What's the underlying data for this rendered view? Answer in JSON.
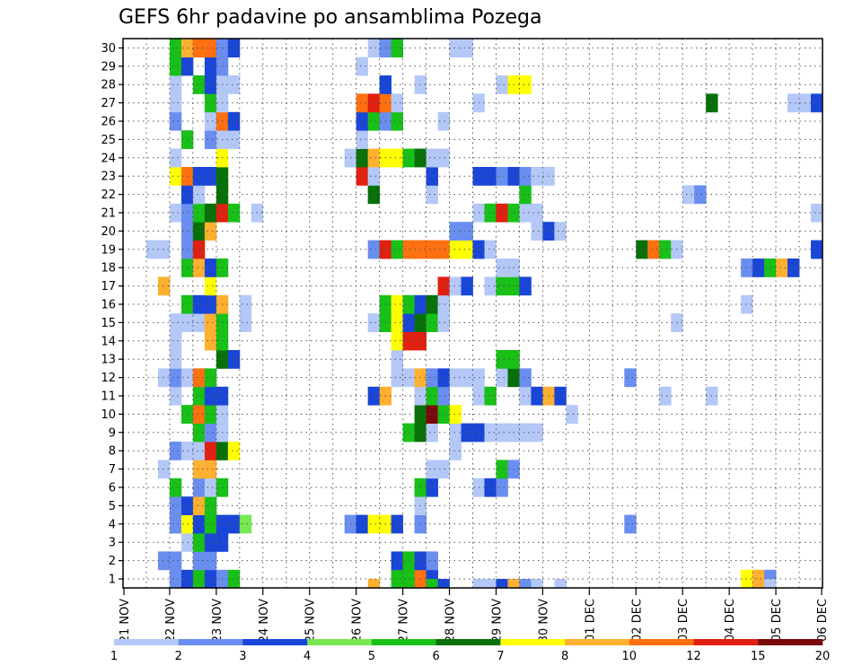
{
  "chart_data": {
    "type": "heatmap",
    "title": "GEFS 6hr padavine po ansamblima Pozega",
    "x_tick_labels": [
      "21 NOV",
      "22 NOV",
      "23 NOV",
      "24 NOV",
      "25 NOV",
      "26 NOV",
      "27 NOV",
      "28 NOV",
      "29 NOV",
      "30 NOV",
      "01 DEC",
      "02 DEC",
      "03 DEC",
      "04 DEC",
      "05 DEC",
      "06 DEC"
    ],
    "y_tick_labels": [
      1,
      2,
      3,
      4,
      5,
      6,
      7,
      8,
      9,
      10,
      11,
      12,
      13,
      14,
      15,
      16,
      17,
      18,
      19,
      20,
      21,
      22,
      23,
      24,
      25,
      26,
      27,
      28,
      29,
      30
    ],
    "x_unit": "6-hour step (0 = 21 NOV 00z)",
    "xlim": [
      0,
      60
    ],
    "ylim": [
      0.5,
      30.5
    ],
    "grid": true,
    "colorbar": {
      "tick_labels": [
        "1",
        "2",
        "3",
        "4",
        "5",
        "6",
        "7",
        "8",
        "10",
        "12",
        "15",
        "20"
      ],
      "colors": [
        "#b4c8f8",
        "#6a8ef0",
        "#1a46d8",
        "#78e850",
        "#18c018",
        "#087008",
        "#ffff00",
        "#ffb030",
        "#ff7010",
        "#e02010",
        "#7a0a0a"
      ]
    },
    "members": {
      "1": [
        [
          4,
          2
        ],
        [
          5,
          3
        ],
        [
          6,
          5
        ],
        [
          7,
          3
        ],
        [
          8,
          2
        ],
        [
          9,
          5
        ],
        [
          23,
          5
        ],
        [
          24,
          5
        ],
        [
          25,
          9
        ],
        [
          26,
          3
        ],
        [
          53,
          7
        ],
        [
          54,
          8
        ],
        [
          55,
          2
        ]
      ],
      "2": [
        [
          3,
          2
        ],
        [
          4,
          2
        ],
        [
          6,
          2
        ],
        [
          7,
          2
        ],
        [
          23,
          3
        ],
        [
          24,
          5
        ],
        [
          25,
          3
        ],
        [
          26,
          2
        ]
      ],
      "3": [
        [
          5,
          1
        ],
        [
          6,
          5
        ],
        [
          7,
          3
        ],
        [
          8,
          3
        ]
      ],
      "4": [
        [
          4,
          2
        ],
        [
          5,
          7
        ],
        [
          6,
          3
        ],
        [
          7,
          5
        ],
        [
          8,
          3
        ],
        [
          9,
          3
        ],
        [
          10,
          4
        ],
        [
          19,
          2
        ],
        [
          20,
          3
        ],
        [
          21,
          7
        ],
        [
          22,
          7
        ],
        [
          23,
          3
        ],
        [
          25,
          2
        ],
        [
          43,
          2
        ]
      ],
      "5": [
        [
          4,
          2
        ],
        [
          5,
          3
        ],
        [
          6,
          8
        ],
        [
          7,
          5
        ],
        [
          25,
          1
        ]
      ],
      "6": [
        [
          4,
          5
        ],
        [
          6,
          2
        ],
        [
          7,
          1
        ],
        [
          8,
          5
        ],
        [
          25,
          5
        ],
        [
          26,
          3
        ],
        [
          30,
          1
        ],
        [
          31,
          3
        ],
        [
          32,
          2
        ]
      ],
      "7": [
        [
          3,
          1
        ],
        [
          6,
          8
        ],
        [
          7,
          8
        ],
        [
          26,
          1
        ],
        [
          27,
          1
        ],
        [
          32,
          5
        ],
        [
          33,
          2
        ]
      ],
      "8": [
        [
          4,
          2
        ],
        [
          5,
          1
        ],
        [
          6,
          1
        ],
        [
          7,
          10
        ],
        [
          8,
          6
        ],
        [
          9,
          7
        ],
        [
          28,
          1
        ]
      ],
      "9": [
        [
          6,
          5
        ],
        [
          7,
          2
        ],
        [
          8,
          1
        ],
        [
          24,
          5
        ],
        [
          25,
          6
        ],
        [
          26,
          1
        ],
        [
          28,
          1
        ],
        [
          29,
          3
        ],
        [
          30,
          3
        ],
        [
          31,
          1
        ],
        [
          32,
          1
        ],
        [
          33,
          1
        ],
        [
          34,
          1
        ],
        [
          35,
          1
        ]
      ],
      "10": [
        [
          5,
          5
        ],
        [
          6,
          9
        ],
        [
          7,
          5
        ],
        [
          8,
          1
        ],
        [
          25,
          6
        ],
        [
          26,
          11
        ],
        [
          27,
          5
        ],
        [
          28,
          7
        ],
        [
          38,
          1
        ]
      ],
      "11": [
        [
          4,
          1
        ],
        [
          6,
          5
        ],
        [
          7,
          3
        ],
        [
          8,
          3
        ],
        [
          21,
          3
        ],
        [
          22,
          8
        ],
        [
          25,
          1
        ],
        [
          26,
          5
        ],
        [
          27,
          2
        ],
        [
          30,
          1
        ],
        [
          31,
          5
        ],
        [
          34,
          1
        ],
        [
          35,
          3
        ],
        [
          36,
          8
        ],
        [
          37,
          3
        ],
        [
          46,
          1
        ],
        [
          50,
          1
        ]
      ],
      "12": [
        [
          3,
          1
        ],
        [
          4,
          2
        ],
        [
          5,
          1
        ],
        [
          6,
          9
        ],
        [
          7,
          5
        ],
        [
          23,
          1
        ],
        [
          24,
          1
        ],
        [
          25,
          8
        ],
        [
          26,
          2
        ],
        [
          27,
          3
        ],
        [
          28,
          1
        ],
        [
          29,
          1
        ],
        [
          30,
          1
        ],
        [
          32,
          1
        ],
        [
          33,
          6
        ],
        [
          34,
          2
        ],
        [
          43,
          2
        ]
      ],
      "13": [
        [
          4,
          1
        ],
        [
          8,
          6
        ],
        [
          9,
          3
        ],
        [
          23,
          1
        ],
        [
          32,
          5
        ],
        [
          33,
          5
        ]
      ],
      "14": [
        [
          4,
          1
        ],
        [
          7,
          8
        ],
        [
          8,
          5
        ],
        [
          23,
          7
        ],
        [
          24,
          10
        ],
        [
          25,
          10
        ]
      ],
      "15": [
        [
          4,
          1
        ],
        [
          5,
          1
        ],
        [
          6,
          1
        ],
        [
          7,
          8
        ],
        [
          8,
          5
        ],
        [
          10,
          1
        ],
        [
          21,
          1
        ],
        [
          22,
          5
        ],
        [
          23,
          7
        ],
        [
          24,
          3
        ],
        [
          25,
          6
        ],
        [
          26,
          5
        ],
        [
          27,
          1
        ],
        [
          47,
          1
        ]
      ],
      "16": [
        [
          5,
          5
        ],
        [
          6,
          3
        ],
        [
          7,
          3
        ],
        [
          8,
          8
        ],
        [
          10,
          1
        ],
        [
          22,
          5
        ],
        [
          23,
          7
        ],
        [
          24,
          5
        ],
        [
          25,
          3
        ],
        [
          26,
          6
        ],
        [
          27,
          1
        ],
        [
          53,
          1
        ]
      ],
      "17": [
        [
          3,
          8
        ],
        [
          7,
          7
        ],
        [
          27,
          10
        ],
        [
          28,
          1
        ],
        [
          29,
          3
        ],
        [
          31,
          1
        ],
        [
          32,
          5
        ],
        [
          33,
          5
        ],
        [
          34,
          3
        ]
      ],
      "18": [
        [
          5,
          5
        ],
        [
          6,
          8
        ],
        [
          7,
          3
        ],
        [
          8,
          5
        ],
        [
          32,
          1
        ],
        [
          33,
          1
        ],
        [
          53,
          2
        ],
        [
          54,
          3
        ],
        [
          55,
          5
        ],
        [
          56,
          8
        ],
        [
          57,
          3
        ]
      ],
      "19": [
        [
          2,
          1
        ],
        [
          3,
          1
        ],
        [
          5,
          2
        ],
        [
          6,
          10
        ],
        [
          21,
          2
        ],
        [
          22,
          10
        ],
        [
          23,
          5
        ],
        [
          24,
          9
        ],
        [
          25,
          9
        ],
        [
          26,
          9
        ],
        [
          27,
          9
        ],
        [
          28,
          7
        ],
        [
          29,
          7
        ],
        [
          30,
          3
        ],
        [
          31,
          1
        ],
        [
          44,
          6
        ],
        [
          45,
          9
        ],
        [
          46,
          5
        ],
        [
          47,
          1
        ],
        [
          59,
          3
        ]
      ],
      "20": [
        [
          5,
          2
        ],
        [
          6,
          6
        ],
        [
          7,
          8
        ],
        [
          28,
          2
        ],
        [
          29,
          2
        ],
        [
          35,
          1
        ],
        [
          36,
          3
        ],
        [
          37,
          1
        ]
      ],
      "21": [
        [
          4,
          1
        ],
        [
          5,
          2
        ],
        [
          6,
          5
        ],
        [
          7,
          6
        ],
        [
          8,
          10
        ],
        [
          9,
          5
        ],
        [
          11,
          1
        ],
        [
          30,
          1
        ],
        [
          31,
          5
        ],
        [
          32,
          10
        ],
        [
          33,
          5
        ],
        [
          34,
          1
        ],
        [
          35,
          1
        ],
        [
          59,
          1
        ]
      ],
      "22": [
        [
          5,
          3
        ],
        [
          6,
          1
        ],
        [
          8,
          6
        ],
        [
          21,
          6
        ],
        [
          26,
          1
        ],
        [
          34,
          5
        ],
        [
          48,
          1
        ],
        [
          49,
          2
        ]
      ],
      "23": [
        [
          4,
          7
        ],
        [
          5,
          9
        ],
        [
          6,
          3
        ],
        [
          7,
          3
        ],
        [
          8,
          6
        ],
        [
          20,
          10
        ],
        [
          21,
          1
        ],
        [
          26,
          3
        ],
        [
          30,
          3
        ],
        [
          31,
          3
        ],
        [
          32,
          2
        ],
        [
          33,
          3
        ],
        [
          34,
          2
        ],
        [
          35,
          1
        ],
        [
          36,
          1
        ]
      ],
      "24": [
        [
          4,
          1
        ],
        [
          8,
          7
        ],
        [
          19,
          1
        ],
        [
          20,
          6
        ],
        [
          21,
          8
        ],
        [
          22,
          7
        ],
        [
          23,
          7
        ],
        [
          24,
          5
        ],
        [
          25,
          6
        ],
        [
          26,
          1
        ],
        [
          27,
          1
        ]
      ],
      "25": [
        [
          5,
          5
        ],
        [
          7,
          2
        ],
        [
          8,
          1
        ],
        [
          9,
          1
        ],
        [
          20,
          1
        ]
      ],
      "26": [
        [
          4,
          2
        ],
        [
          7,
          1
        ],
        [
          8,
          9
        ],
        [
          9,
          3
        ],
        [
          20,
          3
        ],
        [
          21,
          5
        ],
        [
          22,
          2
        ],
        [
          23,
          5
        ],
        [
          27,
          1
        ]
      ],
      "27": [
        [
          4,
          1
        ],
        [
          7,
          5
        ],
        [
          8,
          1
        ],
        [
          20,
          9
        ],
        [
          21,
          10
        ],
        [
          22,
          9
        ],
        [
          23,
          1
        ],
        [
          30,
          1
        ],
        [
          50,
          6
        ],
        [
          57,
          1
        ],
        [
          58,
          1
        ],
        [
          59,
          3
        ]
      ],
      "28": [
        [
          4,
          1
        ],
        [
          6,
          5
        ],
        [
          7,
          3
        ],
        [
          8,
          1
        ],
        [
          9,
          1
        ],
        [
          22,
          3
        ],
        [
          25,
          1
        ],
        [
          32,
          1
        ],
        [
          33,
          7
        ],
        [
          34,
          7
        ]
      ],
      "29": [
        [
          4,
          5
        ],
        [
          5,
          3
        ],
        [
          7,
          3
        ],
        [
          8,
          2
        ],
        [
          20,
          1
        ]
      ],
      "30": [
        [
          4,
          5
        ],
        [
          5,
          8
        ],
        [
          6,
          9
        ],
        [
          7,
          9
        ],
        [
          8,
          2
        ],
        [
          9,
          3
        ],
        [
          21,
          1
        ],
        [
          22,
          2
        ],
        [
          23,
          5
        ],
        [
          28,
          1
        ],
        [
          29,
          1
        ]
      ]
    },
    "bottom_row": [
      [
        21,
        8
      ],
      [
        26,
        5
      ],
      [
        27,
        3
      ],
      [
        30,
        1
      ],
      [
        31,
        1
      ],
      [
        32,
        3
      ],
      [
        33,
        8
      ],
      [
        34,
        2
      ],
      [
        35,
        1
      ],
      [
        37,
        1
      ],
      [
        55,
        1
      ]
    ]
  }
}
